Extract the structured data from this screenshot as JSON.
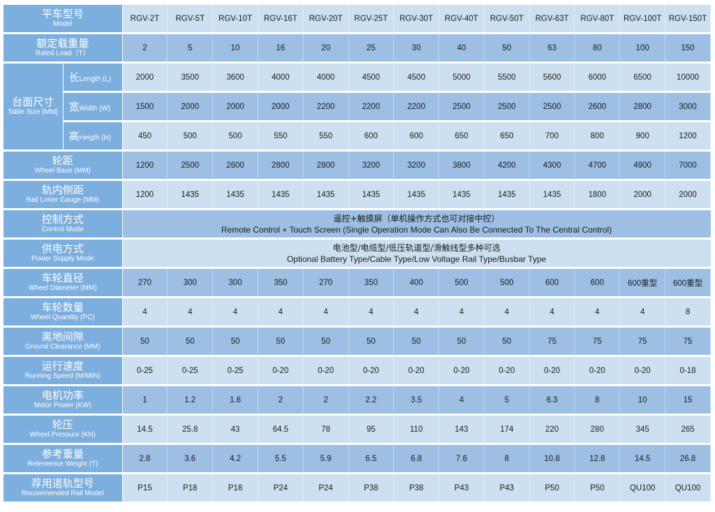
{
  "colors": {
    "label_bg": "#7caede",
    "row_light": "#cde0f2",
    "row_dark": "#9dbfe3"
  },
  "header": {
    "zh": "平车型号",
    "en": "Model",
    "models": [
      "RGV-2T",
      "RGV-5T",
      "RGV-10T",
      "RGV-16T",
      "RGV-20T",
      "RGV-25T",
      "RGV-30T",
      "RGV-40T",
      "RGV-50T",
      "RGV-63T",
      "RGV-80T",
      "RGV-100T",
      "RGV-150T"
    ]
  },
  "table_size": {
    "zh": "台面尺寸",
    "en": "Table Size (MM)",
    "rows": [
      {
        "zh": "长",
        "en": "Length (L)",
        "values": [
          "2000",
          "3500",
          "3600",
          "4000",
          "4000",
          "4500",
          "4500",
          "5000",
          "5500",
          "5600",
          "6000",
          "6500",
          "10000"
        ]
      },
      {
        "zh": "宽",
        "en": "Width (W)",
        "values": [
          "1500",
          "2000",
          "2000",
          "2000",
          "2200",
          "2200",
          "2200",
          "2500",
          "2500",
          "2500",
          "2600",
          "2800",
          "3000"
        ]
      },
      {
        "zh": "高",
        "en": "Heigth (H)",
        "values": [
          "450",
          "500",
          "500",
          "550",
          "550",
          "600",
          "600",
          "650",
          "650",
          "700",
          "800",
          "900",
          "1200"
        ]
      }
    ]
  },
  "rows": [
    {
      "id": "rated-load",
      "zh": "额定载重量",
      "en": "Rated Load（T）",
      "values": [
        "2",
        "5",
        "10",
        "16",
        "20",
        "25",
        "30",
        "40",
        "50",
        "63",
        "80",
        "100",
        "150"
      ]
    },
    {
      "id": "wheel-base",
      "zh": "轮距",
      "en": "Wheel Base (MM)",
      "values": [
        "1200",
        "2500",
        "2600",
        "2800",
        "2800",
        "3200",
        "3200",
        "3800",
        "4200",
        "4300",
        "4700",
        "4900",
        "7000"
      ]
    },
    {
      "id": "rail-gauge",
      "zh": "轨内侧距",
      "en": "Rail Lnner Gauge (MM)",
      "values": [
        "1200",
        "1435",
        "1435",
        "1435",
        "1435",
        "1435",
        "1435",
        "1435",
        "1435",
        "1435",
        "1800",
        "2000",
        "2000"
      ]
    },
    {
      "id": "control-mode",
      "zh": "控制方式",
      "en": "Control Mode",
      "wide": {
        "zh": "遥控+触摸屏（单机操作方式也可对接中控）",
        "en": "Remote Control + Touch Screen (Single Operation Mode Can Also Be Connected To The Central Control)"
      }
    },
    {
      "id": "power-supply",
      "zh": "供电方式",
      "en": "Power Supply Mode",
      "wide": {
        "zh": "电池型/电缆型/低压轨道型/滑触线型多种可选",
        "en": "Optional Battery Type/Cable Type/Low Voltage Rail Type/Busbar Type"
      }
    },
    {
      "id": "wheel-diameter",
      "zh": "车轮直径",
      "en": "Wheel Diameter (MM)",
      "values": [
        "270",
        "300",
        "300",
        "350",
        "270",
        "350",
        "400",
        "500",
        "500",
        "600",
        "600",
        "600重型",
        "600重型"
      ]
    },
    {
      "id": "wheel-quantity",
      "zh": "车轮数量",
      "en": "Wheel Quantity (PC)",
      "values": [
        "4",
        "4",
        "4",
        "4",
        "4",
        "4",
        "4",
        "4",
        "4",
        "4",
        "4",
        "4",
        "8"
      ]
    },
    {
      "id": "ground-clearance",
      "zh": "离地间隙",
      "en": "Ground Clearance (MM)",
      "values": [
        "50",
        "50",
        "50",
        "50",
        "50",
        "50",
        "50",
        "50",
        "50",
        "75",
        "75",
        "75",
        "75"
      ]
    },
    {
      "id": "running-speed",
      "zh": "运行速度",
      "en": "Running Speed (M/MIN)",
      "values": [
        "0-25",
        "0-25",
        "0-25",
        "0-20",
        "0-20",
        "0-20",
        "0-20",
        "0-20",
        "0-20",
        "0-20",
        "0-20",
        "0-20",
        "0-18"
      ]
    },
    {
      "id": "motor-power",
      "zh": "电机功率",
      "en": "Motor Power (KW)",
      "values": [
        "1",
        "1.2",
        "1.6",
        "2",
        "2",
        "2.2",
        "3.5",
        "4",
        "5",
        "6.3",
        "8",
        "10",
        "15"
      ]
    },
    {
      "id": "wheel-pressure",
      "zh": "轮压",
      "en": "Wheel Pressure (KN)",
      "values": [
        "14.5",
        "25.8",
        "43",
        "64.5",
        "78",
        "95",
        "110",
        "143",
        "174",
        "220",
        "280",
        "345",
        "265"
      ]
    },
    {
      "id": "reference-weight",
      "zh": "参考重量",
      "en": "Refenrence Weight (T)",
      "values": [
        "2.8",
        "3.6",
        "4.2",
        "5.5",
        "5.9",
        "6.5",
        "6.8",
        "7.6",
        "8",
        "10.8",
        "12.8",
        "14.5",
        "26.8"
      ]
    },
    {
      "id": "recommended-rail",
      "zh": "荐用道轨型号",
      "en": "Recommended Rail Model",
      "values": [
        "P15",
        "P18",
        "P18",
        "P24",
        "P24",
        "P38",
        "P38",
        "P43",
        "P43",
        "P50",
        "P50",
        "QU100",
        "QU100"
      ]
    }
  ]
}
